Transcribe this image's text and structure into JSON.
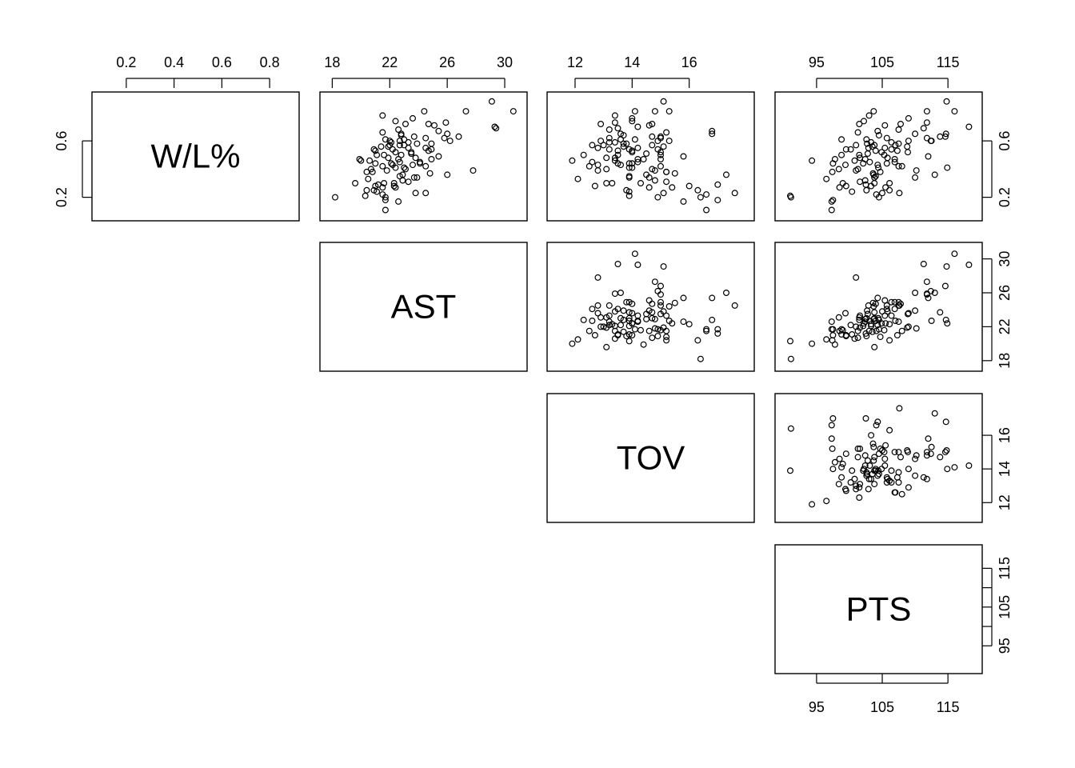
{
  "chart_data": {
    "type": "scatter",
    "title": "",
    "layout": "pairs-matrix-upper-panel",
    "variables": [
      {
        "name": "W/L%",
        "range": [
          0.09,
          0.89
        ],
        "ticks": [
          0.2,
          0.4,
          0.6,
          0.8
        ],
        "panel_ticks": [
          0.2,
          0.6
        ]
      },
      {
        "name": "AST",
        "range": [
          17.7,
          31.0
        ],
        "ticks": [
          18,
          22,
          26,
          30
        ],
        "panel_ticks": [
          18,
          22,
          26,
          30
        ]
      },
      {
        "name": "TOV",
        "range": [
          11.3,
          18.0
        ],
        "ticks": [
          12,
          14,
          16
        ],
        "panel_ticks": [
          12,
          14,
          16
        ]
      },
      {
        "name": "PTS",
        "range": [
          89.9,
          119.0
        ],
        "ticks": [
          95,
          105,
          115
        ],
        "panel_ticks": [
          95,
          100,
          105,
          110,
          115
        ]
      }
    ],
    "top_axis_labels": [
      [
        "0.2",
        "0.4",
        "0.6",
        "0.8"
      ],
      [
        "18",
        "22",
        "26",
        "30"
      ],
      [
        "12",
        "14",
        "16"
      ],
      [
        "95",
        "105",
        "115"
      ]
    ],
    "right_axis_labels": [
      [
        "0.2",
        "0.6"
      ],
      [
        "18",
        "22",
        "26",
        "30"
      ],
      [
        "12",
        "14",
        "16"
      ],
      [
        "95",
        "105",
        "115"
      ]
    ],
    "bottom_axis_labels": [
      "95",
      "105",
      "115"
    ],
    "left_axis_labels": [
      "0.2",
      "0.6"
    ],
    "observations": [
      [
        0.11,
        21.7,
        16.6,
        97.3
      ],
      [
        0.17,
        22.6,
        15.8,
        97.3
      ],
      [
        0.18,
        21.7,
        17.0,
        97.5
      ],
      [
        0.2,
        18.2,
        16.4,
        91.1
      ],
      [
        0.21,
        20.3,
        13.9,
        91.0
      ],
      [
        0.2,
        21.7,
        14.9,
        104.5
      ],
      [
        0.22,
        21.5,
        16.6,
        104.1
      ],
      [
        0.23,
        23.8,
        15.1,
        105.0
      ],
      [
        0.23,
        24.5,
        17.6,
        107.6
      ],
      [
        0.24,
        21.1,
        13.9,
        100.4
      ],
      [
        0.25,
        20.4,
        16.3,
        106.1
      ],
      [
        0.27,
        22.4,
        15.4,
        105.5
      ],
      [
        0.27,
        21.5,
        14.6,
        98.5
      ],
      [
        0.28,
        22.3,
        16.0,
        103.3
      ],
      [
        0.29,
        21.2,
        17.0,
        102.5
      ],
      [
        0.3,
        21.6,
        14.3,
        99.0
      ],
      [
        0.3,
        19.6,
        13.1,
        103.8
      ],
      [
        0.31,
        23.3,
        15.2,
        101.6
      ],
      [
        0.32,
        22.9,
        14.8,
        102.4
      ],
      [
        0.33,
        20.5,
        12.1,
        96.5
      ],
      [
        0.34,
        23.7,
        13.9,
        103.8
      ],
      [
        0.35,
        22.7,
        13.9,
        104.0
      ],
      [
        0.36,
        26.0,
        17.3,
        113.0
      ],
      [
        0.37,
        24.8,
        15.5,
        103.6
      ],
      [
        0.38,
        20.8,
        15.2,
        104.7
      ],
      [
        0.39,
        21.8,
        14.8,
        110.2
      ],
      [
        0.4,
        20.7,
        14.7,
        101.3
      ],
      [
        0.4,
        23.1,
        13.1,
        98.4
      ],
      [
        0.41,
        22.4,
        14.0,
        114.9
      ],
      [
        0.42,
        21.5,
        12.5,
        108.0
      ],
      [
        0.42,
        24.5,
        15.0,
        107.5
      ],
      [
        0.43,
        23.6,
        12.8,
        99.4
      ],
      [
        0.43,
        22.2,
        13.6,
        104.3
      ],
      [
        0.44,
        21.0,
        14.0,
        97.5
      ],
      [
        0.45,
        22.7,
        14.2,
        103.1
      ],
      [
        0.46,
        20.0,
        11.9,
        94.3
      ],
      [
        0.47,
        22.6,
        14.2,
        102.4
      ],
      [
        0.47,
        24.9,
        15.0,
        106.9
      ],
      [
        0.48,
        21.9,
        13.1,
        101.6
      ],
      [
        0.49,
        25.4,
        15.8,
        112.0
      ],
      [
        0.5,
        22.8,
        12.3,
        101.5
      ],
      [
        0.5,
        21.1,
        13.5,
        98.8
      ],
      [
        0.51,
        23.5,
        14.5,
        102.8
      ],
      [
        0.52,
        22.4,
        14.0,
        104.9
      ],
      [
        0.53,
        21.0,
        13.5,
        107.3
      ],
      [
        0.53,
        24.7,
        14.0,
        104.0
      ],
      [
        0.54,
        22.2,
        13.2,
        100.2
      ],
      [
        0.55,
        23.3,
        14.2,
        105.4
      ],
      [
        0.56,
        21.4,
        13.7,
        103.5
      ],
      [
        0.56,
        21.9,
        15.1,
        108.8
      ],
      [
        0.57,
        22.7,
        12.6,
        107.0
      ],
      [
        0.57,
        23.0,
        14.7,
        103.8
      ],
      [
        0.58,
        24.9,
        13.8,
        107.5
      ],
      [
        0.59,
        22.1,
        13.4,
        103.3
      ],
      [
        0.6,
        22.0,
        12.9,
        109.0
      ],
      [
        0.6,
        26.2,
        14.9,
        112.4
      ],
      [
        0.61,
        23.0,
        13.6,
        102.6
      ],
      [
        0.61,
        21.7,
        14.1,
        98.8
      ],
      [
        0.62,
        24.5,
        13.2,
        105.7
      ],
      [
        0.63,
        26.8,
        15.0,
        114.6
      ],
      [
        0.64,
        22.8,
        13.7,
        104.5
      ],
      [
        0.65,
        26.0,
        13.6,
        110.0
      ],
      [
        0.66,
        21.5,
        15.2,
        101.3
      ],
      [
        0.67,
        25.4,
        16.8,
        104.3
      ],
      [
        0.68,
        22.6,
        13.2,
        107.5
      ],
      [
        0.69,
        29.4,
        13.5,
        111.3
      ],
      [
        0.7,
        29.3,
        14.2,
        118.2
      ],
      [
        0.71,
        25.1,
        14.6,
        105.4
      ],
      [
        0.72,
        23.1,
        12.9,
        101.5
      ],
      [
        0.73,
        25.9,
        13.4,
        111.8
      ],
      [
        0.74,
        22.4,
        14.0,
        102.2
      ],
      [
        0.76,
        23.6,
        14.0,
        109.0
      ],
      [
        0.78,
        21.5,
        13.4,
        103.0
      ],
      [
        0.81,
        27.3,
        14.8,
        111.8
      ],
      [
        0.81,
        24.4,
        15.3,
        103.7
      ],
      [
        0.81,
        30.6,
        14.1,
        116.0
      ],
      [
        0.88,
        29.1,
        15.1,
        114.8
      ],
      [
        0.59,
        23.3,
        13.2,
        106.4
      ],
      [
        0.54,
        20.9,
        14.9,
        99.5
      ],
      [
        0.45,
        24.1,
        12.6,
        106.9
      ],
      [
        0.39,
        27.8,
        12.8,
        101.0
      ],
      [
        0.34,
        23.9,
        14.6,
        110.0
      ],
      [
        0.3,
        22.3,
        13.3,
        106.1
      ],
      [
        0.25,
        20.9,
        13.8,
        102.6
      ],
      [
        0.47,
        19.9,
        14.4,
        97.8
      ],
      [
        0.63,
        23.7,
        14.7,
        113.8
      ],
      [
        0.55,
        24.5,
        12.8,
        102.9
      ],
      [
        0.5,
        21.6,
        15.0,
        105.3
      ],
      [
        0.41,
        23.0,
        13.9,
        104.4
      ],
      [
        0.6,
        22.7,
        15.3,
        112.5
      ],
      [
        0.38,
        20.4,
        15.2,
        97.4
      ],
      [
        0.44,
        24.1,
        13.5,
        105.7
      ],
      [
        0.57,
        22.0,
        13.0,
        101.0
      ],
      [
        0.65,
        22.8,
        16.8,
        114.7
      ],
      [
        0.48,
        23.8,
        13.4,
        105.8
      ],
      [
        0.72,
        24.7,
        14.7,
        107.8
      ],
      [
        0.28,
        21.0,
        12.7,
        99.5
      ],
      [
        0.52,
        23.5,
        15.0,
        108.9
      ],
      [
        0.58,
        23.9,
        13.7,
        102.7
      ],
      [
        0.46,
        20.6,
        13.4,
        100.8
      ],
      [
        0.36,
        22.9,
        14.5,
        103.7
      ],
      [
        0.62,
        25.8,
        15.0,
        111.8
      ],
      [
        0.44,
        22.1,
        13.9,
        102.1
      ],
      [
        0.54,
        24.9,
        13.9,
        106.4
      ]
    ]
  }
}
